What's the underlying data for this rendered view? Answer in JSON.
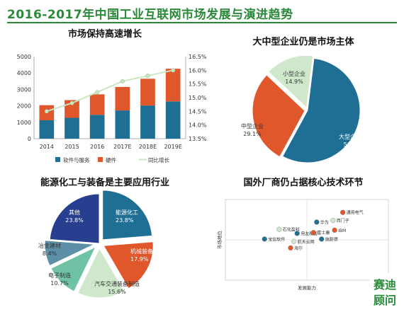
{
  "page": {
    "title": "2016-2017年中国工业互联网市场发展与演进趋势",
    "brand": [
      "赛迪",
      "顾问"
    ],
    "accent": "#2a8a3a"
  },
  "chart_data": [
    {
      "type": "bar",
      "title": "市场保持高速增长",
      "categories": [
        "2014",
        "2015",
        "2016",
        "2017E",
        "2018E",
        "2019E"
      ],
      "series": [
        {
          "name": "软件与服务",
          "values": [
            1120,
            1270,
            1450,
            1720,
            2020,
            2270
          ],
          "color": "#1f6e93"
        },
        {
          "name": "硬件",
          "values": [
            920,
            1080,
            1250,
            1430,
            1630,
            1990
          ],
          "color": "#e0572c"
        },
        {
          "name": "同比增长",
          "values": [
            14.5,
            14.8,
            15.2,
            15.6,
            15.8,
            16.0
          ],
          "color": "#c8e6c0",
          "axis": "right"
        }
      ],
      "ylim": [
        0,
        5000
      ],
      "yticks": [
        0,
        1000,
        2000,
        3000,
        4000,
        5000
      ],
      "y2lim": [
        13.5,
        16.5
      ],
      "y2ticks": [
        "13.5%",
        "14.0%",
        "14.5%",
        "15.0%",
        "15.5%",
        "16.0%",
        "16.5%"
      ],
      "legend": "bottom"
    },
    {
      "type": "pie",
      "title": "大中型企业仍是市场主体",
      "slices": [
        {
          "label": "大型企业",
          "value": 56.0,
          "pct": "56.0%",
          "color": "#1f6e93"
        },
        {
          "label": "中型企业",
          "value": 29.1,
          "pct": "29.1%",
          "color": "#e0572c"
        },
        {
          "label": "小型企业",
          "value": 14.9,
          "pct": "14.9%",
          "color": "#cfe8cc"
        }
      ]
    },
    {
      "type": "pie",
      "title": "能源化工与装备是主要应用行业",
      "slices": [
        {
          "label": "能源化工",
          "value": 23.8,
          "pct": "23.8%",
          "color": "#1f6e93"
        },
        {
          "label": "机械装备",
          "value": 17.9,
          "pct": "17.9%",
          "color": "#e0572c"
        },
        {
          "label": "汽车交通装备制造",
          "value": 15.6,
          "pct": "15.6%",
          "color": "#cfe8cc"
        },
        {
          "label": "电子制造",
          "value": 10.7,
          "pct": "10.7%",
          "color": "#6fc2a6"
        },
        {
          "label": "冶金建材",
          "value": 8.4,
          "pct": "8.4%",
          "color": "#5e8fa8"
        },
        {
          "label": "其他",
          "value": 23.8,
          "pct": "23.8%",
          "color": "#283e8f"
        }
      ]
    },
    {
      "type": "scatter",
      "title": "国外厂商仍占据核心技术环节",
      "xlabel": "发展能力",
      "ylabel": "市场地位",
      "xlim": [
        0,
        10
      ],
      "ylim": [
        0,
        10
      ],
      "points": [
        {
          "label": "通用电气",
          "x": 7.2,
          "y": 8.4,
          "color": "#e0572c"
        },
        {
          "label": "西门子",
          "x": 6.6,
          "y": 7.4,
          "color": "#cfe8cc"
        },
        {
          "label": "华为",
          "x": 5.6,
          "y": 7.2,
          "color": "#1f6e93"
        },
        {
          "label": "IBM",
          "x": 6.7,
          "y": 6.2,
          "color": "#e0572c"
        },
        {
          "label": "石化盈科",
          "x": 3.3,
          "y": 6.3,
          "color": "#cfe8cc"
        },
        {
          "label": "用友精智",
          "x": 4.4,
          "y": 5.8,
          "color": "#1f6e93"
        },
        {
          "label": "富士康",
          "x": 5.4,
          "y": 5.9,
          "color": "#e0572c"
        },
        {
          "label": "施耐德",
          "x": 5.9,
          "y": 5.1,
          "color": "#1f6e93"
        },
        {
          "label": "宝信软件",
          "x": 2.4,
          "y": 5.1,
          "color": "#1f6e93"
        },
        {
          "label": "航天云网",
          "x": 4.2,
          "y": 4.8,
          "color": "#cfe8cc"
        },
        {
          "label": "海尔",
          "x": 4.0,
          "y": 4.0,
          "color": "#e0572c"
        }
      ]
    }
  ]
}
